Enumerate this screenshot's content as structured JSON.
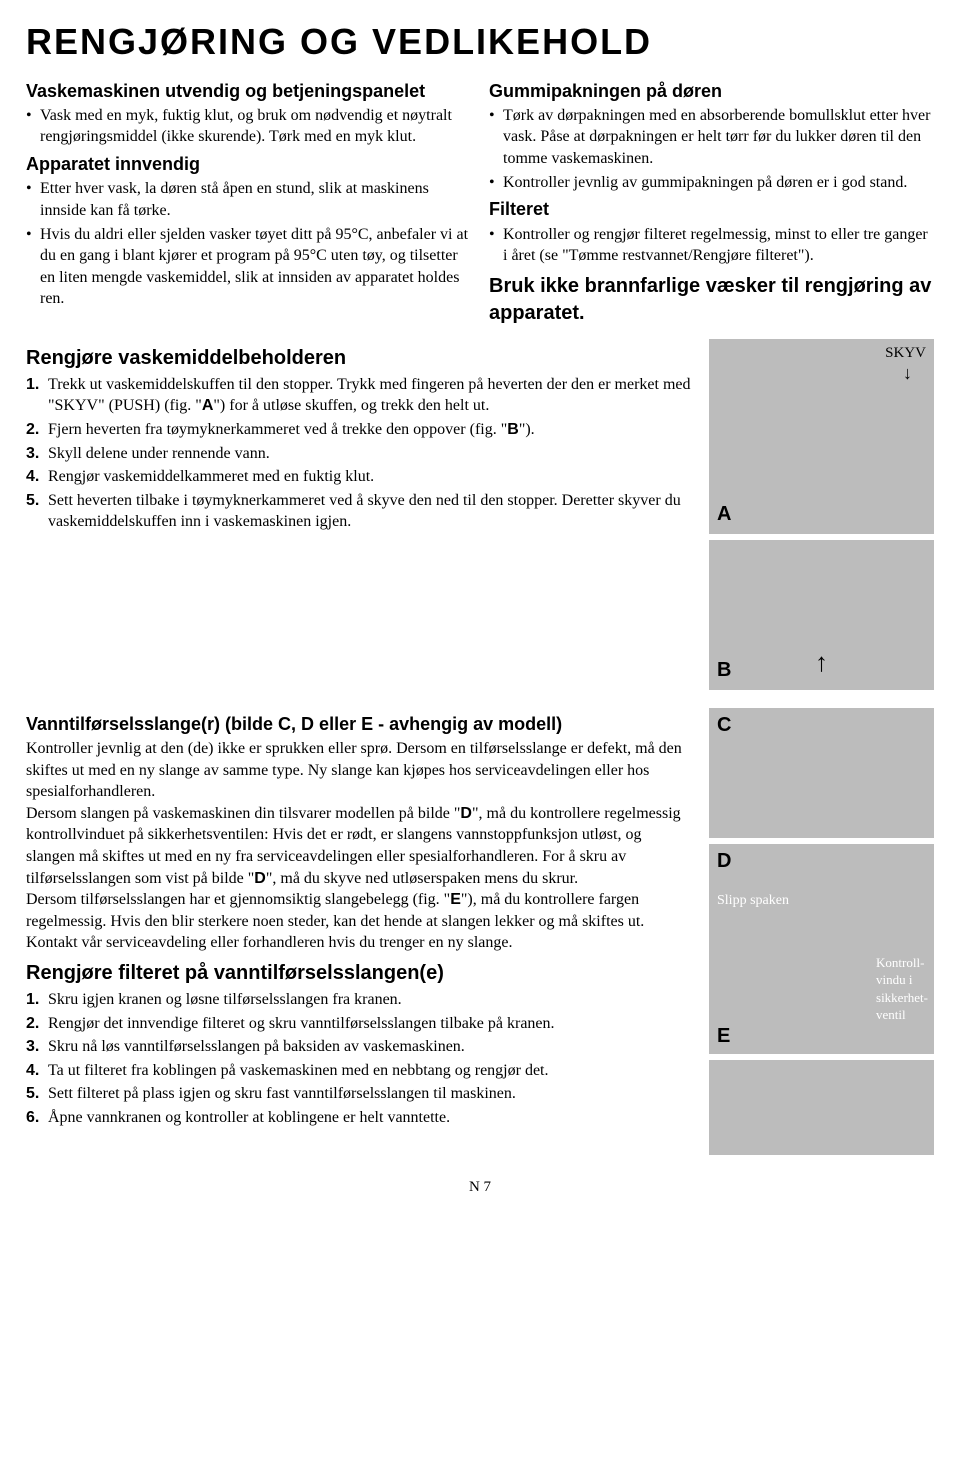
{
  "title": "RENGJØRING OG VEDLIKEHOLD",
  "left": {
    "h_ext": "Vaskemaskinen utvendig og betjeningspanelet",
    "ext_bullets": [
      "Vask med en myk, fuktig klut, og bruk om nødvendig et nøytralt rengjøringsmiddel (ikke skurende). Tørk med en myk klut."
    ],
    "h_int": "Apparatet innvendig",
    "int_bullets": [
      "Etter hver vask, la døren stå åpen en stund, slik at maskinens innside kan få tørke.",
      "Hvis du aldri eller sjelden vasker tøyet ditt på 95°C, anbefaler vi at du en gang i blant kjører et program på 95°C uten tøy, og tilsetter en liten mengde vaskemiddel, slik at innsiden av apparatet holdes ren."
    ]
  },
  "right": {
    "h_gasket": "Gummipakningen på døren",
    "gasket_bullets": [
      "Tørk av dørpakningen med en absorberende bomullsklut etter hver vask. Påse at dørpakningen er helt tørr før du lukker døren til den tomme vaskemaskinen.",
      "Kontroller jevnlig av gummipakningen på døren er i god stand."
    ],
    "h_filter": "Filteret",
    "filter_bullets": [
      "Kontroller og rengjør filteret regelmessig, minst to eller tre ganger i året (se \"Tømme restvannet/Rengjøre filteret\")."
    ],
    "h_warning": "Bruk ikke brannfarlige væsker til rengjøring av apparatet."
  },
  "dispenser": {
    "heading": "Rengjøre vaskemiddelbeholderen",
    "step1a": "Trekk ut vaskemiddelskuffen til den stopper. Trykk med fingeren på heverten der den er merket med \"SKYV\" (PUSH) (fig. \"",
    "step1A": "A",
    "step1b": "\") for å utløse skuffen, og trekk den helt ut.",
    "step2a": "Fjern heverten fra tøymyknerkammeret ved å trekke den oppover (fig. \"",
    "step2B": "B",
    "step2b": "\").",
    "step3": "Skyll delene under rennende vann.",
    "step4": "Rengjør vaskemiddelkammeret med en fuktig klut.",
    "step5": "Sett heverten tilbake i tøymyknerkammeret ved å skyve den ned til den stopper. Deretter skyver du vaskemiddelskuffen inn i vaskemaskinen igjen."
  },
  "hose": {
    "heading": "Vanntilførselsslange(r) (bilde C, D eller E - avhengig av modell)",
    "p1a": "Kontroller jevnlig at den (de) ikke er sprukken eller sprø. Dersom en tilførselsslange er defekt, må den skiftes ut med en ny slange av samme type. Ny slange kan kjøpes hos serviceavdelingen eller hos spesialforhandleren.",
    "p2a": "Dersom slangen på vaskemaskinen din tilsvarer modellen på bilde \"",
    "p2D1": "D",
    "p2b": "\", må du kontrollere regelmessig kontrollvinduet på sikkerhetsventilen: Hvis det er rødt, er slangens vannstoppfunksjon utløst, og slangen må skiftes ut med en ny fra serviceavdelingen eller spesialforhandleren. For å skru av tilførselsslangen som vist på bilde \"",
    "p2D2": "D",
    "p2c": "\", må du skyve ned utløserspaken mens du skrur.",
    "p3a": "Dersom tilførselsslangen har et gjennomsiktig slangebelegg (fig. \"",
    "p3E": "E",
    "p3b": "\"), må du kontrollere fargen regelmessig. Hvis den blir sterkere noen steder, kan det hende at slangen lekker og må skiftes ut. Kontakt vår serviceavdeling eller forhandleren hvis du trenger en ny slange."
  },
  "inlet_filter": {
    "heading": "Rengjøre filteret på vanntilførselsslangen(e)",
    "steps": [
      "Skru igjen kranen og løsne tilførselsslangen fra kranen.",
      "Rengjør det innvendige filteret og skru vanntilførselsslangen tilbake på kranen.",
      "Skru nå løs vanntilførselsslangen på baksiden av vaskemaskinen.",
      "Ta ut filteret fra koblingen på vaskemaskinen med en nebbtang og rengjør det.",
      "Sett filteret på plass igjen og skru fast vanntilførselsslangen til maskinen.",
      "Åpne vannkranen og kontroller at koblingene er helt vanntette."
    ]
  },
  "figs": {
    "skyv": "SKYV",
    "A": "A",
    "B": "B",
    "C": "C",
    "D": "D",
    "E": "E",
    "slipp": "Slipp spaken",
    "kontroll": "Kontroll-\nvindu i\nsikkerhet-\nventil",
    "heights": {
      "A": 195,
      "B": 150,
      "C": 130,
      "D": 210,
      "E": 95
    },
    "colors": {
      "bg": "#bcbcbc",
      "overlay_text": "#ffffff",
      "label": "#000000"
    }
  },
  "footer": "N 7"
}
